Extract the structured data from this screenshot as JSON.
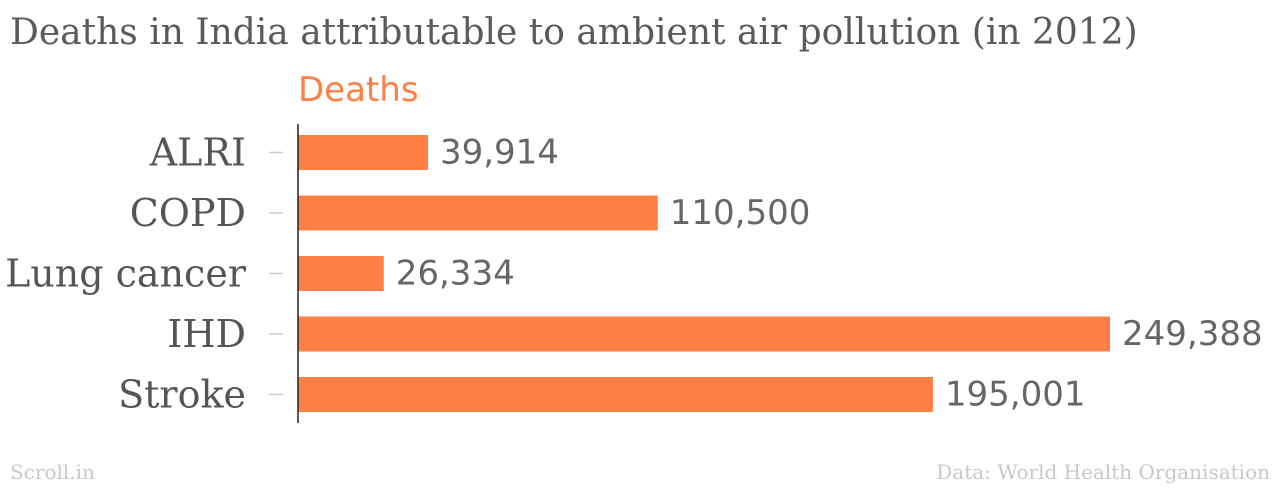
{
  "header": {
    "title": "Deaths in India attributable to ambient air pollution (in 2012)"
  },
  "footer": {
    "source_left": "Scroll.in",
    "source_right": "Data: World Health Organisation"
  },
  "colors": {
    "bar": "#ff7f45",
    "series_label": "#ff7f45",
    "axis": "#222222",
    "tick": "#cccccc"
  },
  "chart_data": {
    "type": "bar",
    "orientation": "horizontal",
    "categories": [
      "ALRI",
      "COPD",
      "Lung cancer",
      "IHD",
      "Stroke"
    ],
    "series": [
      {
        "name": "Deaths",
        "values": [
          39914,
          110500,
          26334,
          249388,
          195001
        ],
        "value_labels": [
          "39,914",
          "110,500",
          "26,334",
          "249,388",
          "195,001"
        ]
      }
    ],
    "xlim": [
      0,
      249388
    ],
    "grid": false,
    "legend": "top-left"
  }
}
